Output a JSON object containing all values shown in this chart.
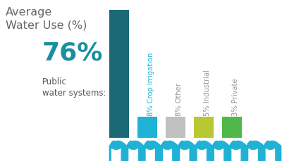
{
  "title": "Average\nWater Use (%)",
  "title_color": "#666666",
  "title_fontsize": 11.5,
  "big_pct": "76%",
  "big_pct_color": "#1a8fa0",
  "big_pct_fontsize": 26,
  "big_label": "Public\nwater systems:",
  "big_label_color": "#555555",
  "big_label_fontsize": 8.5,
  "big_bar_color": "#1a6a75",
  "categories": [
    "Crop Irrigation",
    "Other",
    "Industrial",
    "Private"
  ],
  "pct_labels": [
    "8%",
    "8%",
    "5%",
    "3%"
  ],
  "bar_colors": [
    "#20b2d4",
    "#c0c0c0",
    "#b8c832",
    "#50b848"
  ],
  "label_colors": [
    "#20b2d4",
    "#999999",
    "#999999",
    "#999999"
  ],
  "wave_color": "#20b2d4",
  "background_color": "#ffffff"
}
